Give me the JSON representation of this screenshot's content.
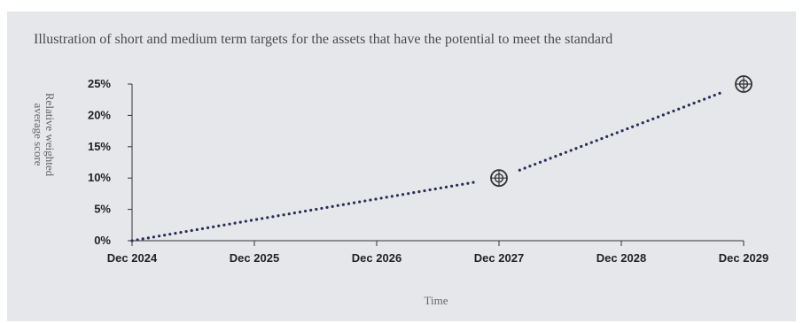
{
  "chart_data": {
    "type": "line",
    "title": "Illustration of short and medium term targets for the assets that have the potential to meet the standard",
    "xlabel": "Time",
    "ylabel": "Relative weighted average score",
    "categories": [
      "Dec 2024",
      "Dec 2025",
      "Dec 2026",
      "Dec 2027",
      "Dec 2028",
      "Dec 2029"
    ],
    "y_ticks": [
      "0%",
      "5%",
      "10%",
      "15%",
      "20%",
      "25%"
    ],
    "ylim": [
      0,
      25
    ],
    "series": [
      {
        "x": [
          "Dec 2024",
          "Dec 2027",
          "Dec 2029"
        ],
        "values": [
          0,
          10,
          25
        ],
        "style": "dotted",
        "color": "#2b2d55"
      }
    ],
    "target_markers": [
      {
        "x": "Dec 2027",
        "value": 10
      },
      {
        "x": "Dec 2029",
        "value": 25
      }
    ],
    "grid": false
  }
}
